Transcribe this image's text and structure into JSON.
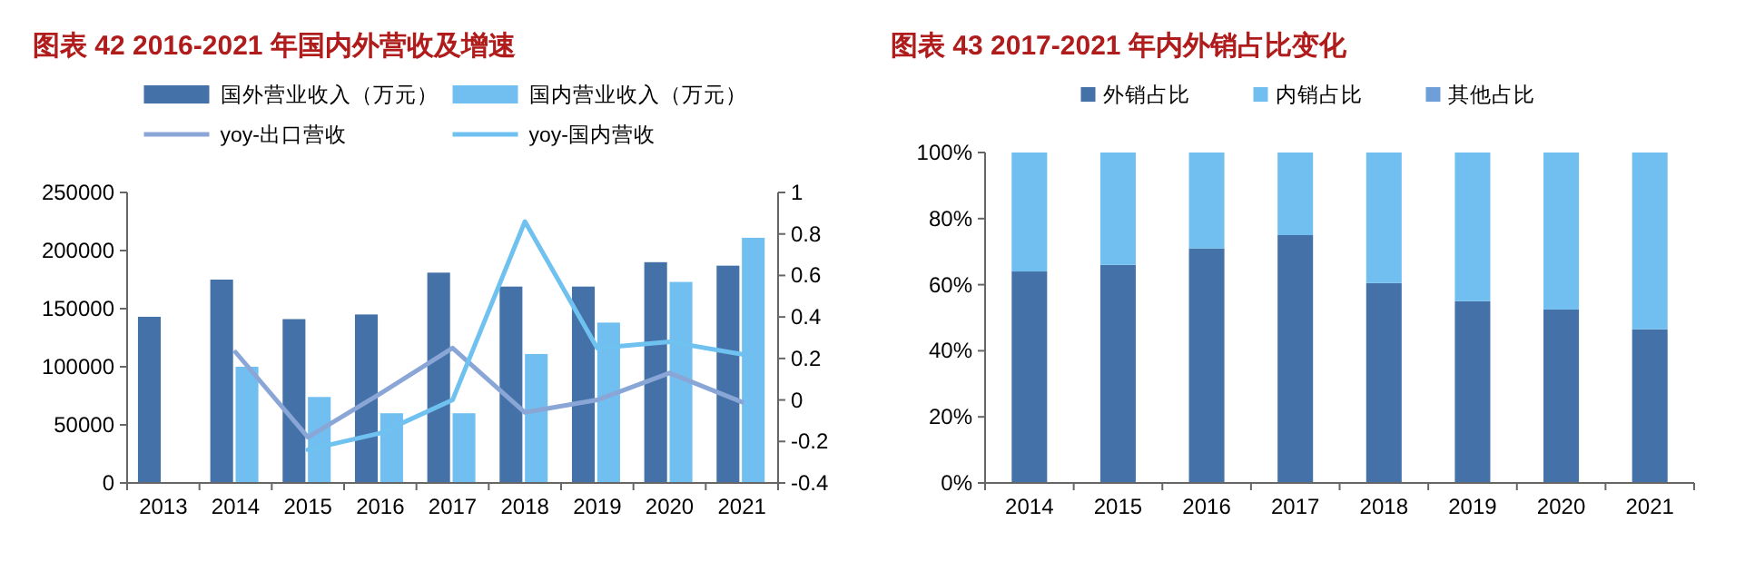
{
  "chart_data": [
    {
      "type": "bar",
      "title": "图表 42 2016-2021 年国内外营收及增速",
      "categories": [
        "2013",
        "2014",
        "2015",
        "2016",
        "2017",
        "2018",
        "2019",
        "2020",
        "2021"
      ],
      "series": [
        {
          "name": "国外营业收入（万元）",
          "color": "#4472a8",
          "values": [
            143000,
            175000,
            141000,
            145000,
            181000,
            169000,
            169000,
            190000,
            187000
          ]
        },
        {
          "name": "国内营业收入（万元）",
          "color": "#71bff0",
          "values": [
            null,
            100000,
            74000,
            60000,
            60000,
            111000,
            138000,
            173000,
            211000
          ]
        },
        {
          "name": "yoy-出口营收",
          "type": "line",
          "axis": "y2",
          "color": "#8aa6d6",
          "values": [
            null,
            0.23,
            -0.18,
            0.03,
            0.25,
            -0.06,
            0.0,
            0.13,
            -0.01
          ]
        },
        {
          "name": "yoy-国内营收",
          "type": "line",
          "axis": "y2",
          "color": "#6fc1f0",
          "values": [
            null,
            null,
            -0.24,
            -0.16,
            0.0,
            0.86,
            0.25,
            0.28,
            0.22
          ]
        }
      ],
      "ylim": [
        0,
        250000
      ],
      "yticks": [
        0,
        50000,
        100000,
        150000,
        200000,
        250000
      ],
      "y2lim": [
        -0.4,
        1
      ],
      "y2ticks": [
        -0.4,
        -0.2,
        0,
        0.2,
        0.4,
        0.6,
        0.8,
        1
      ],
      "legend": "top",
      "grid": false
    },
    {
      "type": "bar",
      "title": "图表 43 2017-2021 年内外销占比变化",
      "stacked": true,
      "categories": [
        "2014",
        "2015",
        "2016",
        "2017",
        "2018",
        "2019",
        "2020",
        "2021"
      ],
      "series": [
        {
          "name": "外销占比",
          "color": "#4472a8",
          "values": [
            64,
            66,
            71,
            75,
            60.5,
            55,
            52.5,
            46.5
          ]
        },
        {
          "name": "内销占比",
          "color": "#71bff0",
          "values": [
            36,
            34,
            29,
            25,
            39.5,
            45,
            47.5,
            53.5
          ]
        },
        {
          "name": "其他占比",
          "color": "#6f9fd8",
          "values": [
            0,
            0,
            0,
            0,
            0,
            0,
            0,
            0
          ]
        }
      ],
      "ylim": [
        0,
        100
      ],
      "yticks": [
        {
          "value": 0,
          "label": "0%"
        },
        {
          "value": 20,
          "label": "20%"
        },
        {
          "value": 40,
          "label": "40%"
        },
        {
          "value": 60,
          "label": "60%"
        },
        {
          "value": 80,
          "label": "80%"
        },
        {
          "value": 100,
          "label": "100%"
        }
      ],
      "legend": "top",
      "grid": false
    }
  ]
}
